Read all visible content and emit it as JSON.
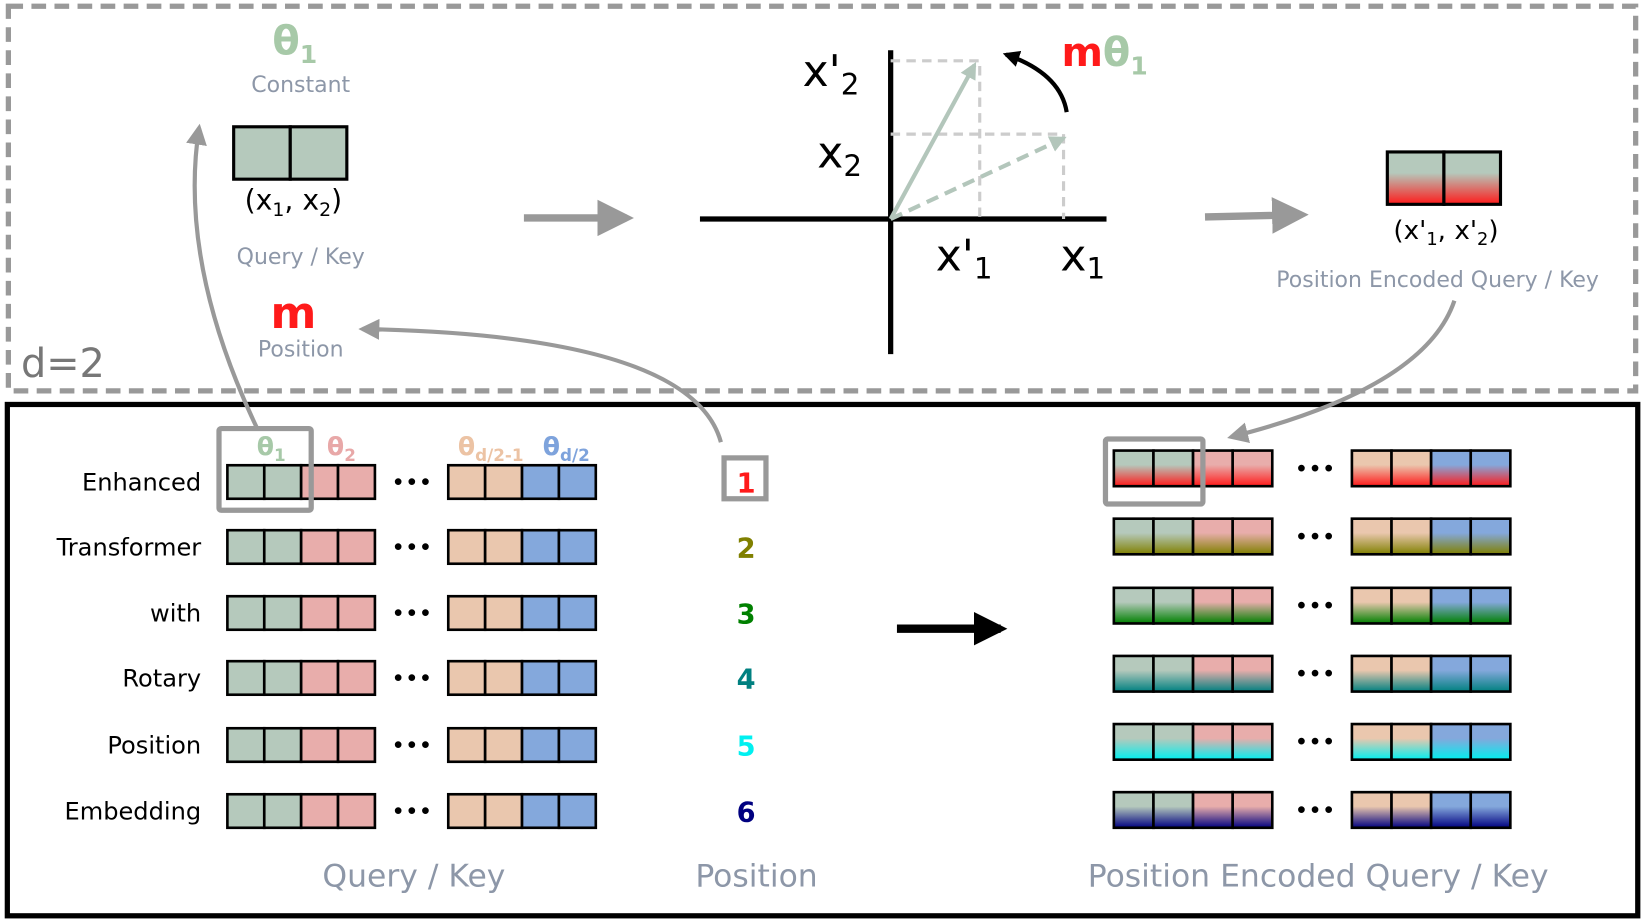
{
  "top_panel": {
    "dimension_label": "d=2",
    "theta": {
      "symbol": "θ",
      "sub": "1",
      "caption": "Constant"
    },
    "vector": {
      "label_open": "(x",
      "sub1": "1",
      "mid": ", x",
      "sub2": "2",
      "close": ")",
      "caption": "Query / Key"
    },
    "position": {
      "symbol": "m",
      "caption": "Position"
    },
    "rotation": {
      "m": "m",
      "theta": "θ",
      "sub": "1"
    },
    "axes": {
      "x2p": "x'",
      "x2p_sub": "2",
      "x2": "x",
      "x2_sub": "2",
      "x1p": "x'",
      "x1p_sub": "1",
      "x1": "x",
      "x1_sub": "1"
    },
    "encoded": {
      "label_open": "(x'",
      "sub1": "1",
      "mid": ", x'",
      "sub2": "2",
      "close": ")",
      "caption": "Position Encoded Query / Key"
    }
  },
  "bottom_panel": {
    "theta_labels": [
      {
        "symbol": "θ",
        "sub": "1",
        "color": "#a7c9a8"
      },
      {
        "symbol": "θ",
        "sub": "2",
        "color": "#e8a8a8"
      },
      {
        "symbol": "θ",
        "sub": "d/2-1",
        "color": "#ecc3a4"
      },
      {
        "symbol": "θ",
        "sub": "d/2",
        "color": "#7ea3dc"
      }
    ],
    "words": [
      "Enhanced",
      "Transformer",
      "with",
      "Rotary",
      "Position",
      "Embedding"
    ],
    "positions": [
      {
        "value": "1",
        "color": "#ff1a1a"
      },
      {
        "value": "2",
        "color": "#808000"
      },
      {
        "value": "3",
        "color": "#008000"
      },
      {
        "value": "4",
        "color": "#008080"
      },
      {
        "value": "5",
        "color": "#00f0f0"
      },
      {
        "value": "6",
        "color": "#000080"
      }
    ],
    "ellipsis": "•••",
    "caption_query": "Query / Key",
    "caption_position": "Position",
    "caption_encoded": "Position Encoded Query / Key"
  },
  "colors": {
    "green": "#b5c9bc",
    "pink": "#e8adab",
    "peach": "#eac7ae",
    "blue": "#84a8dc",
    "arrow_gray": "#999999"
  }
}
